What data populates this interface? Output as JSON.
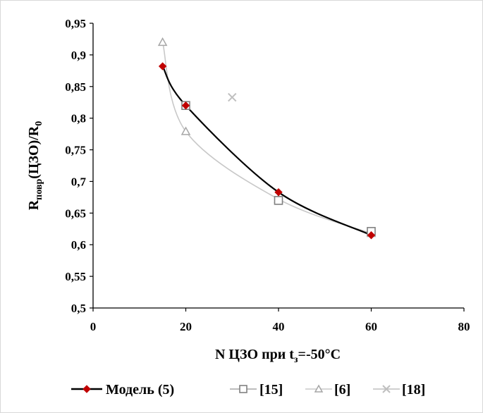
{
  "chart_data": {
    "type": "scatter",
    "xlabel": {
      "main": "N ЦЗО при t",
      "sub": "з",
      "rest": "=-50°C"
    },
    "ylabel": {
      "main": "R",
      "sub1": "повр",
      "mid": "(ЦЗО)/R",
      "sub2": "0"
    },
    "xlim": [
      0,
      80
    ],
    "ylim": [
      0.5,
      0.95
    ],
    "x_ticks": [
      {
        "value": 0,
        "label": "0"
      },
      {
        "value": 20,
        "label": "20"
      },
      {
        "value": 40,
        "label": "40"
      },
      {
        "value": 60,
        "label": "60"
      },
      {
        "value": 80,
        "label": "80"
      }
    ],
    "y_ticks": [
      {
        "value": 0.5,
        "label": "0,5"
      },
      {
        "value": 0.55,
        "label": "0,55"
      },
      {
        "value": 0.6,
        "label": "0,6"
      },
      {
        "value": 0.65,
        "label": "0,65"
      },
      {
        "value": 0.7,
        "label": "0,7"
      },
      {
        "value": 0.75,
        "label": "0,75"
      },
      {
        "value": 0.8,
        "label": "0,8"
      },
      {
        "value": 0.85,
        "label": "0,85"
      },
      {
        "value": 0.9,
        "label": "0,9"
      },
      {
        "value": 0.95,
        "label": "0,95"
      }
    ],
    "grid": false,
    "legend_position": "bottom",
    "series": [
      {
        "name": "Модель (5)",
        "marker": "diamond",
        "line": "smooth",
        "line_color": "#000000",
        "marker_color": "#c00000",
        "x": [
          15,
          20,
          40,
          60
        ],
        "y": [
          0.882,
          0.82,
          0.683,
          0.615
        ]
      },
      {
        "name": "[15]",
        "marker": "square",
        "line": "none",
        "line_color": "#a6a6a6",
        "marker_color": "#808080",
        "x": [
          20,
          40,
          60
        ],
        "y": [
          0.82,
          0.67,
          0.621
        ]
      },
      {
        "name": "[6]",
        "marker": "triangle",
        "line": "smooth",
        "line_color": "#c8c8c8",
        "marker_color": "#a6a6a6",
        "x": [
          15,
          20,
          40,
          60
        ],
        "y": [
          0.92,
          0.779,
          0.672,
          0.618
        ]
      },
      {
        "name": "[18]",
        "marker": "cross",
        "line": "none",
        "line_color": "#bfbfbf",
        "marker_color": "#bfbfbf",
        "x": [
          30
        ],
        "y": [
          0.833
        ]
      }
    ]
  }
}
